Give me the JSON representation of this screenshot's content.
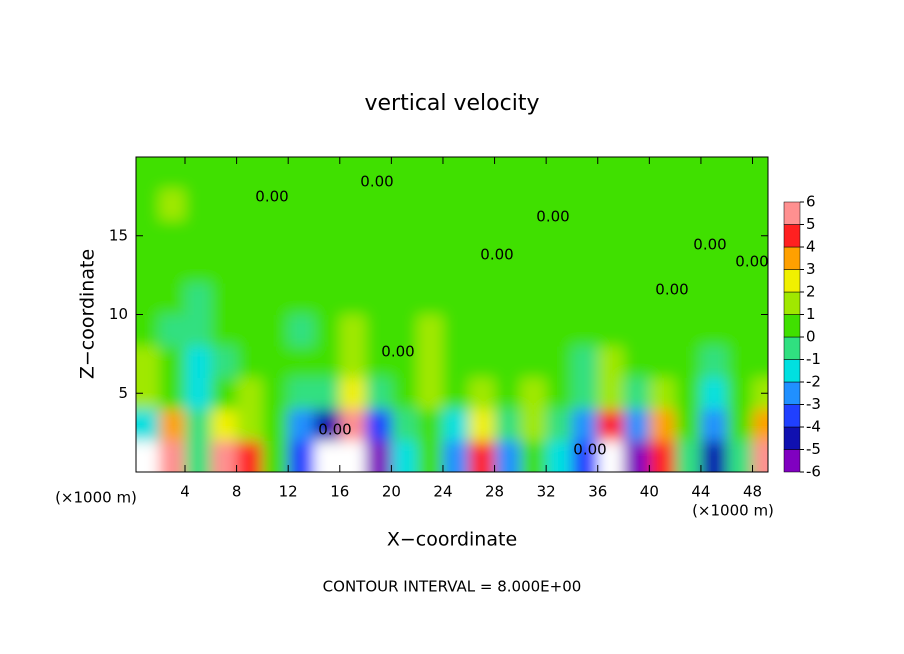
{
  "chart_data": {
    "type": "heatmap",
    "title": "vertical velocity",
    "xlabel": "X−coordinate",
    "ylabel": "Z−coordinate",
    "x_unit": "(×1000 m)",
    "footnote": "CONTOUR INTERVAL = 8.000E+00",
    "contour_label": "0.00",
    "xlim": [
      0.2,
      49.2
    ],
    "ylim": [
      0,
      20
    ],
    "xticks": [
      4,
      8,
      12,
      16,
      20,
      24,
      28,
      32,
      36,
      40,
      44,
      48
    ],
    "yticks": [
      5,
      10,
      15
    ],
    "x": [
      1,
      3,
      5,
      7,
      9,
      11,
      13,
      15,
      17,
      19,
      21,
      23,
      25,
      27,
      29,
      31,
      33,
      35,
      37,
      39,
      41,
      43,
      45,
      47,
      49
    ],
    "y": [
      1,
      3,
      5,
      7,
      9,
      11,
      13,
      15,
      17,
      19
    ],
    "z": [
      [
        -7,
        5,
        -1,
        5,
        4,
        0,
        -4,
        -7,
        7,
        -6,
        -2,
        0,
        -3,
        4,
        -3,
        0,
        -2,
        -4,
        7,
        -6,
        4,
        -1,
        -5,
        -1,
        5
      ],
      [
        -2,
        3,
        -1,
        2,
        1,
        0,
        -3,
        -5,
        5,
        -4,
        -1,
        0,
        -2,
        2,
        -1,
        1,
        -1,
        -3,
        4,
        -3,
        3,
        0,
        -3,
        0,
        3
      ],
      [
        1,
        0,
        -2,
        0,
        1,
        0,
        -1,
        -1,
        2,
        -1,
        0,
        1,
        0,
        1,
        0,
        1,
        0,
        -1,
        1,
        -1,
        1,
        0,
        -2,
        0,
        1
      ],
      [
        1,
        0,
        -2,
        -1,
        0,
        0,
        0,
        0,
        1,
        0,
        0,
        1,
        0,
        0,
        0,
        0,
        0,
        -1,
        1,
        0,
        0,
        0,
        -1,
        0,
        0
      ],
      [
        0,
        -1,
        -1,
        0,
        0,
        0,
        -1,
        0,
        1,
        0,
        0,
        1,
        0,
        0,
        0,
        0,
        0,
        0,
        0,
        0,
        0,
        0,
        0,
        0,
        0
      ],
      [
        0,
        0,
        -1,
        0,
        0,
        0,
        0,
        0,
        0,
        0,
        0,
        0,
        0,
        0,
        0,
        0,
        0,
        0,
        0,
        0,
        0,
        0,
        0,
        0,
        0
      ],
      [
        0,
        0,
        0,
        0,
        0,
        0,
        0,
        0,
        0,
        0,
        0,
        0,
        0,
        0,
        0,
        0,
        0,
        0,
        0,
        0,
        0,
        0,
        0,
        0,
        0
      ],
      [
        0,
        0,
        0,
        0,
        0,
        0,
        0,
        0,
        0,
        0,
        0,
        0,
        0,
        0,
        0,
        0,
        0,
        0,
        0,
        0,
        0,
        0,
        0,
        0,
        0
      ],
      [
        0,
        1,
        0,
        0,
        0,
        0,
        0,
        0,
        0,
        0,
        0,
        0,
        0,
        0,
        0,
        0,
        0,
        0,
        0,
        0,
        0,
        0,
        0,
        0,
        0
      ],
      [
        0,
        0,
        0,
        0,
        0,
        0,
        0,
        0,
        0,
        0,
        0,
        0,
        0,
        0,
        0,
        0,
        0,
        0,
        0,
        0,
        0,
        0,
        0,
        0,
        0
      ]
    ],
    "colorbar": {
      "ticks": [
        -6,
        -5,
        -4,
        -3,
        -2,
        -1,
        0,
        1,
        2,
        3,
        4,
        5,
        6
      ],
      "colors": [
        "#8000c0",
        "#1010b0",
        "#2040ff",
        "#2090ff",
        "#00e0e0",
        "#30e080",
        "#40e000",
        "#a0e800",
        "#f0f000",
        "#ffa000",
        "#ff2020",
        "#ff9090"
      ]
    }
  }
}
